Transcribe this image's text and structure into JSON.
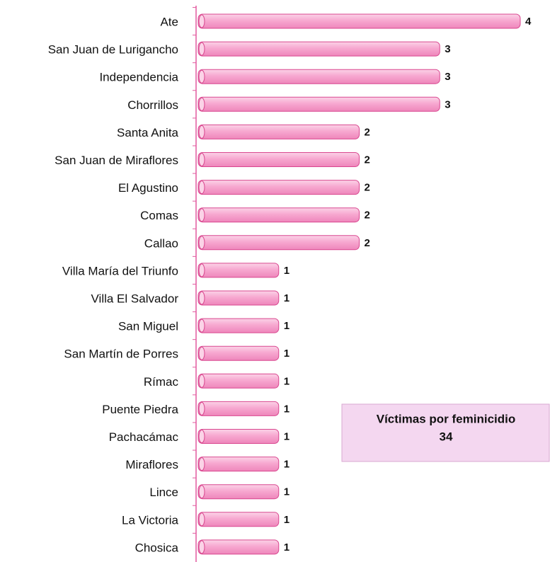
{
  "chart_data": {
    "type": "bar",
    "orientation": "horizontal",
    "categories": [
      "Ate",
      "San Juan de Lurigancho",
      "Independencia",
      "Chorrillos",
      "Santa Anita",
      "San Juan de Miraflores",
      "El Agustino",
      "Comas",
      "Callao",
      "Villa María del Triunfo",
      "Villa El Salvador",
      "San Miguel",
      "San Martín de Porres",
      "Rímac",
      "Puente Piedra",
      "Pachacámac",
      "Miraflores",
      "Lince",
      "La Victoria",
      "Chosica"
    ],
    "values": [
      4,
      3,
      3,
      3,
      2,
      2,
      2,
      2,
      2,
      1,
      1,
      1,
      1,
      1,
      1,
      1,
      1,
      1,
      1,
      1
    ],
    "color": "#f7a8d0",
    "xlim": [
      0,
      4
    ],
    "annotation": {
      "title": "Víctimas por feminicidio",
      "value": 34
    }
  }
}
